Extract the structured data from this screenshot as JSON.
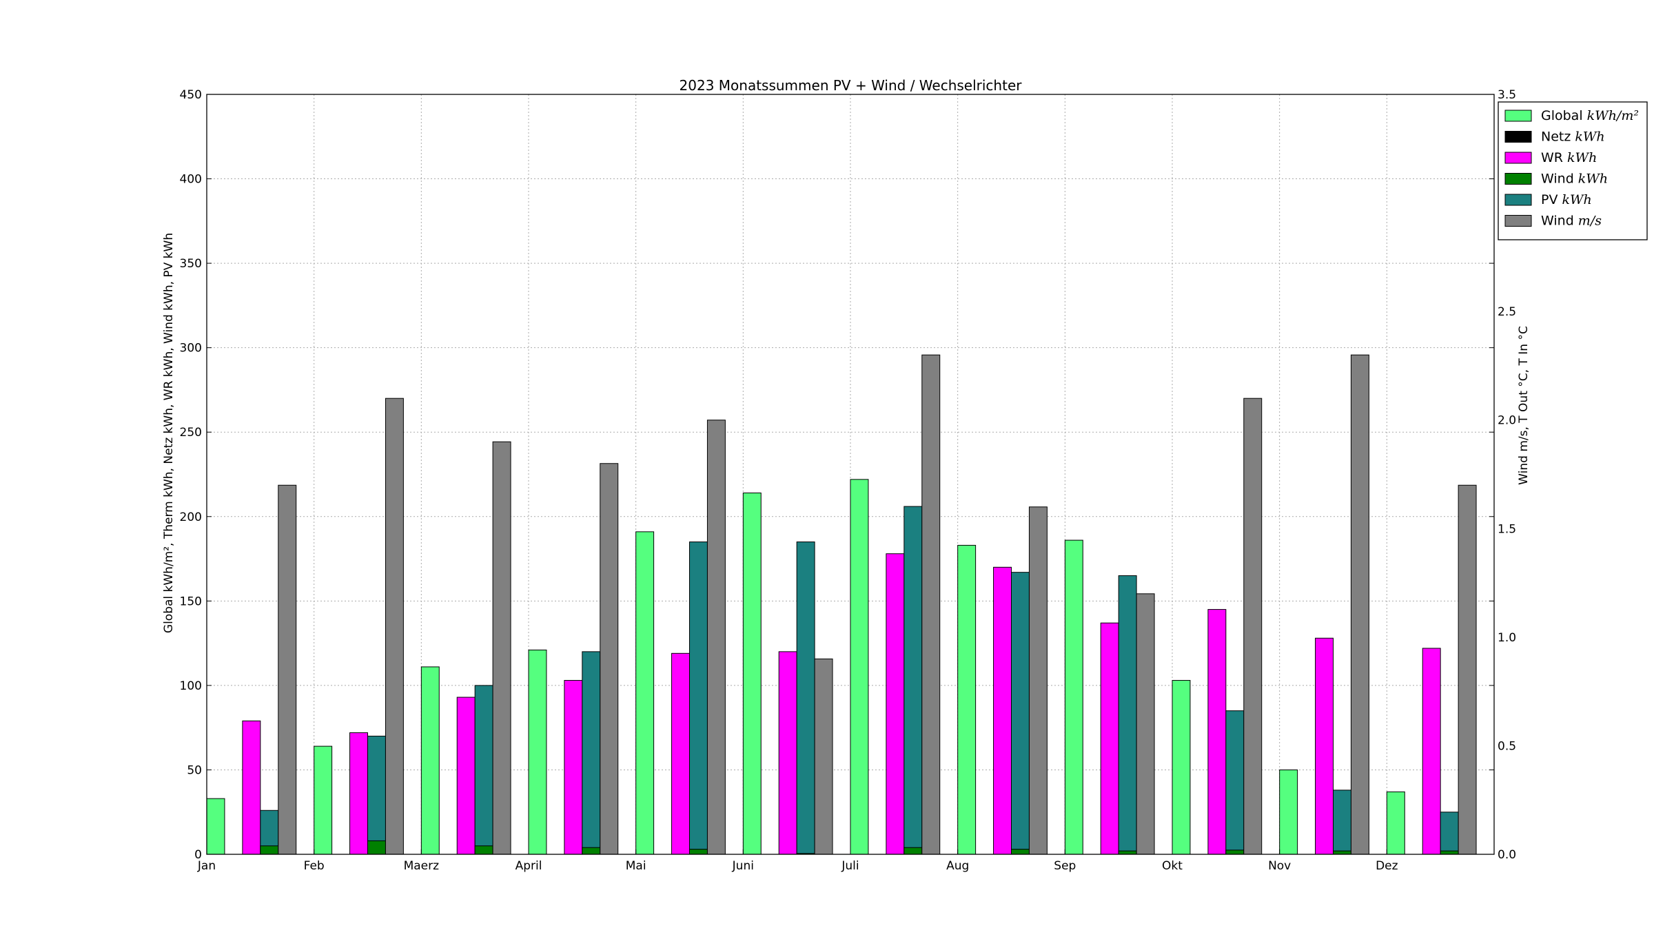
{
  "chart_data": {
    "type": "bar",
    "title": "2023 Monatssummen PV + Wind / Wechselrichter",
    "ylabel_left": "Global kWh/m², Therm kWh, Netz kWh, WR kWh, Wind kWh, PV kWh",
    "ylabel_right": "Wind m/s, T Out °C, T In °C",
    "ylim_left": [
      0,
      450
    ],
    "ylim_right": [
      0,
      3.5
    ],
    "yticks_left": [
      "0",
      "50",
      "100",
      "150",
      "200",
      "250",
      "300",
      "350",
      "400",
      "450"
    ],
    "yticks_right": [
      "0.0",
      "0.5",
      "1.0",
      "1.5",
      "2.0",
      "2.5",
      "3.0",
      "3.5"
    ],
    "categories": [
      "Jan",
      "Feb",
      "Maerz",
      "April",
      "Mai",
      "Juni",
      "Juli",
      "Aug",
      "Sep",
      "Okt",
      "Nov",
      "Dez"
    ],
    "grid": true,
    "legend_position": "top-right",
    "series": [
      {
        "name": "Global kWh/m²",
        "label": "Global",
        "unit": "kWh/m²",
        "axis": "left",
        "color": "#55ff7f",
        "values": [
          33,
          64,
          111,
          121,
          191,
          214,
          222,
          183,
          186,
          103,
          50,
          37
        ]
      },
      {
        "name": "Netz kWh",
        "label": "Netz",
        "unit": "kWh",
        "axis": "left",
        "color": "#000000",
        "values": [
          0,
          0,
          0,
          0,
          0,
          0,
          0,
          0,
          0,
          0,
          0,
          0
        ]
      },
      {
        "name": "WR kWh",
        "label": "WR",
        "unit": "kWh",
        "axis": "left",
        "color": "#ff00ff",
        "values": [
          79,
          72,
          93,
          103,
          119,
          120,
          178,
          170,
          137,
          145,
          128,
          122
        ]
      },
      {
        "name": "Wind kWh",
        "label": "Wind",
        "unit": "kWh",
        "axis": "left",
        "color": "#008000",
        "values": [
          5,
          8,
          5,
          4,
          3,
          0.5,
          4,
          3,
          2,
          2.5,
          2,
          2
        ]
      },
      {
        "name": "PV kWh",
        "label": "PV",
        "unit": "kWh",
        "axis": "left",
        "color": "#1b8080",
        "values": [
          26,
          70,
          100,
          120,
          185,
          185,
          206,
          167,
          165,
          85,
          38,
          25
        ]
      },
      {
        "name": "Wind m/s",
        "label": "Wind",
        "unit": "m/s",
        "axis": "right",
        "color": "#808080",
        "values": [
          1.7,
          2.1,
          1.9,
          1.8,
          2.0,
          0.9,
          2.3,
          1.6,
          1.2,
          2.1,
          2.3,
          1.7
        ]
      }
    ]
  }
}
